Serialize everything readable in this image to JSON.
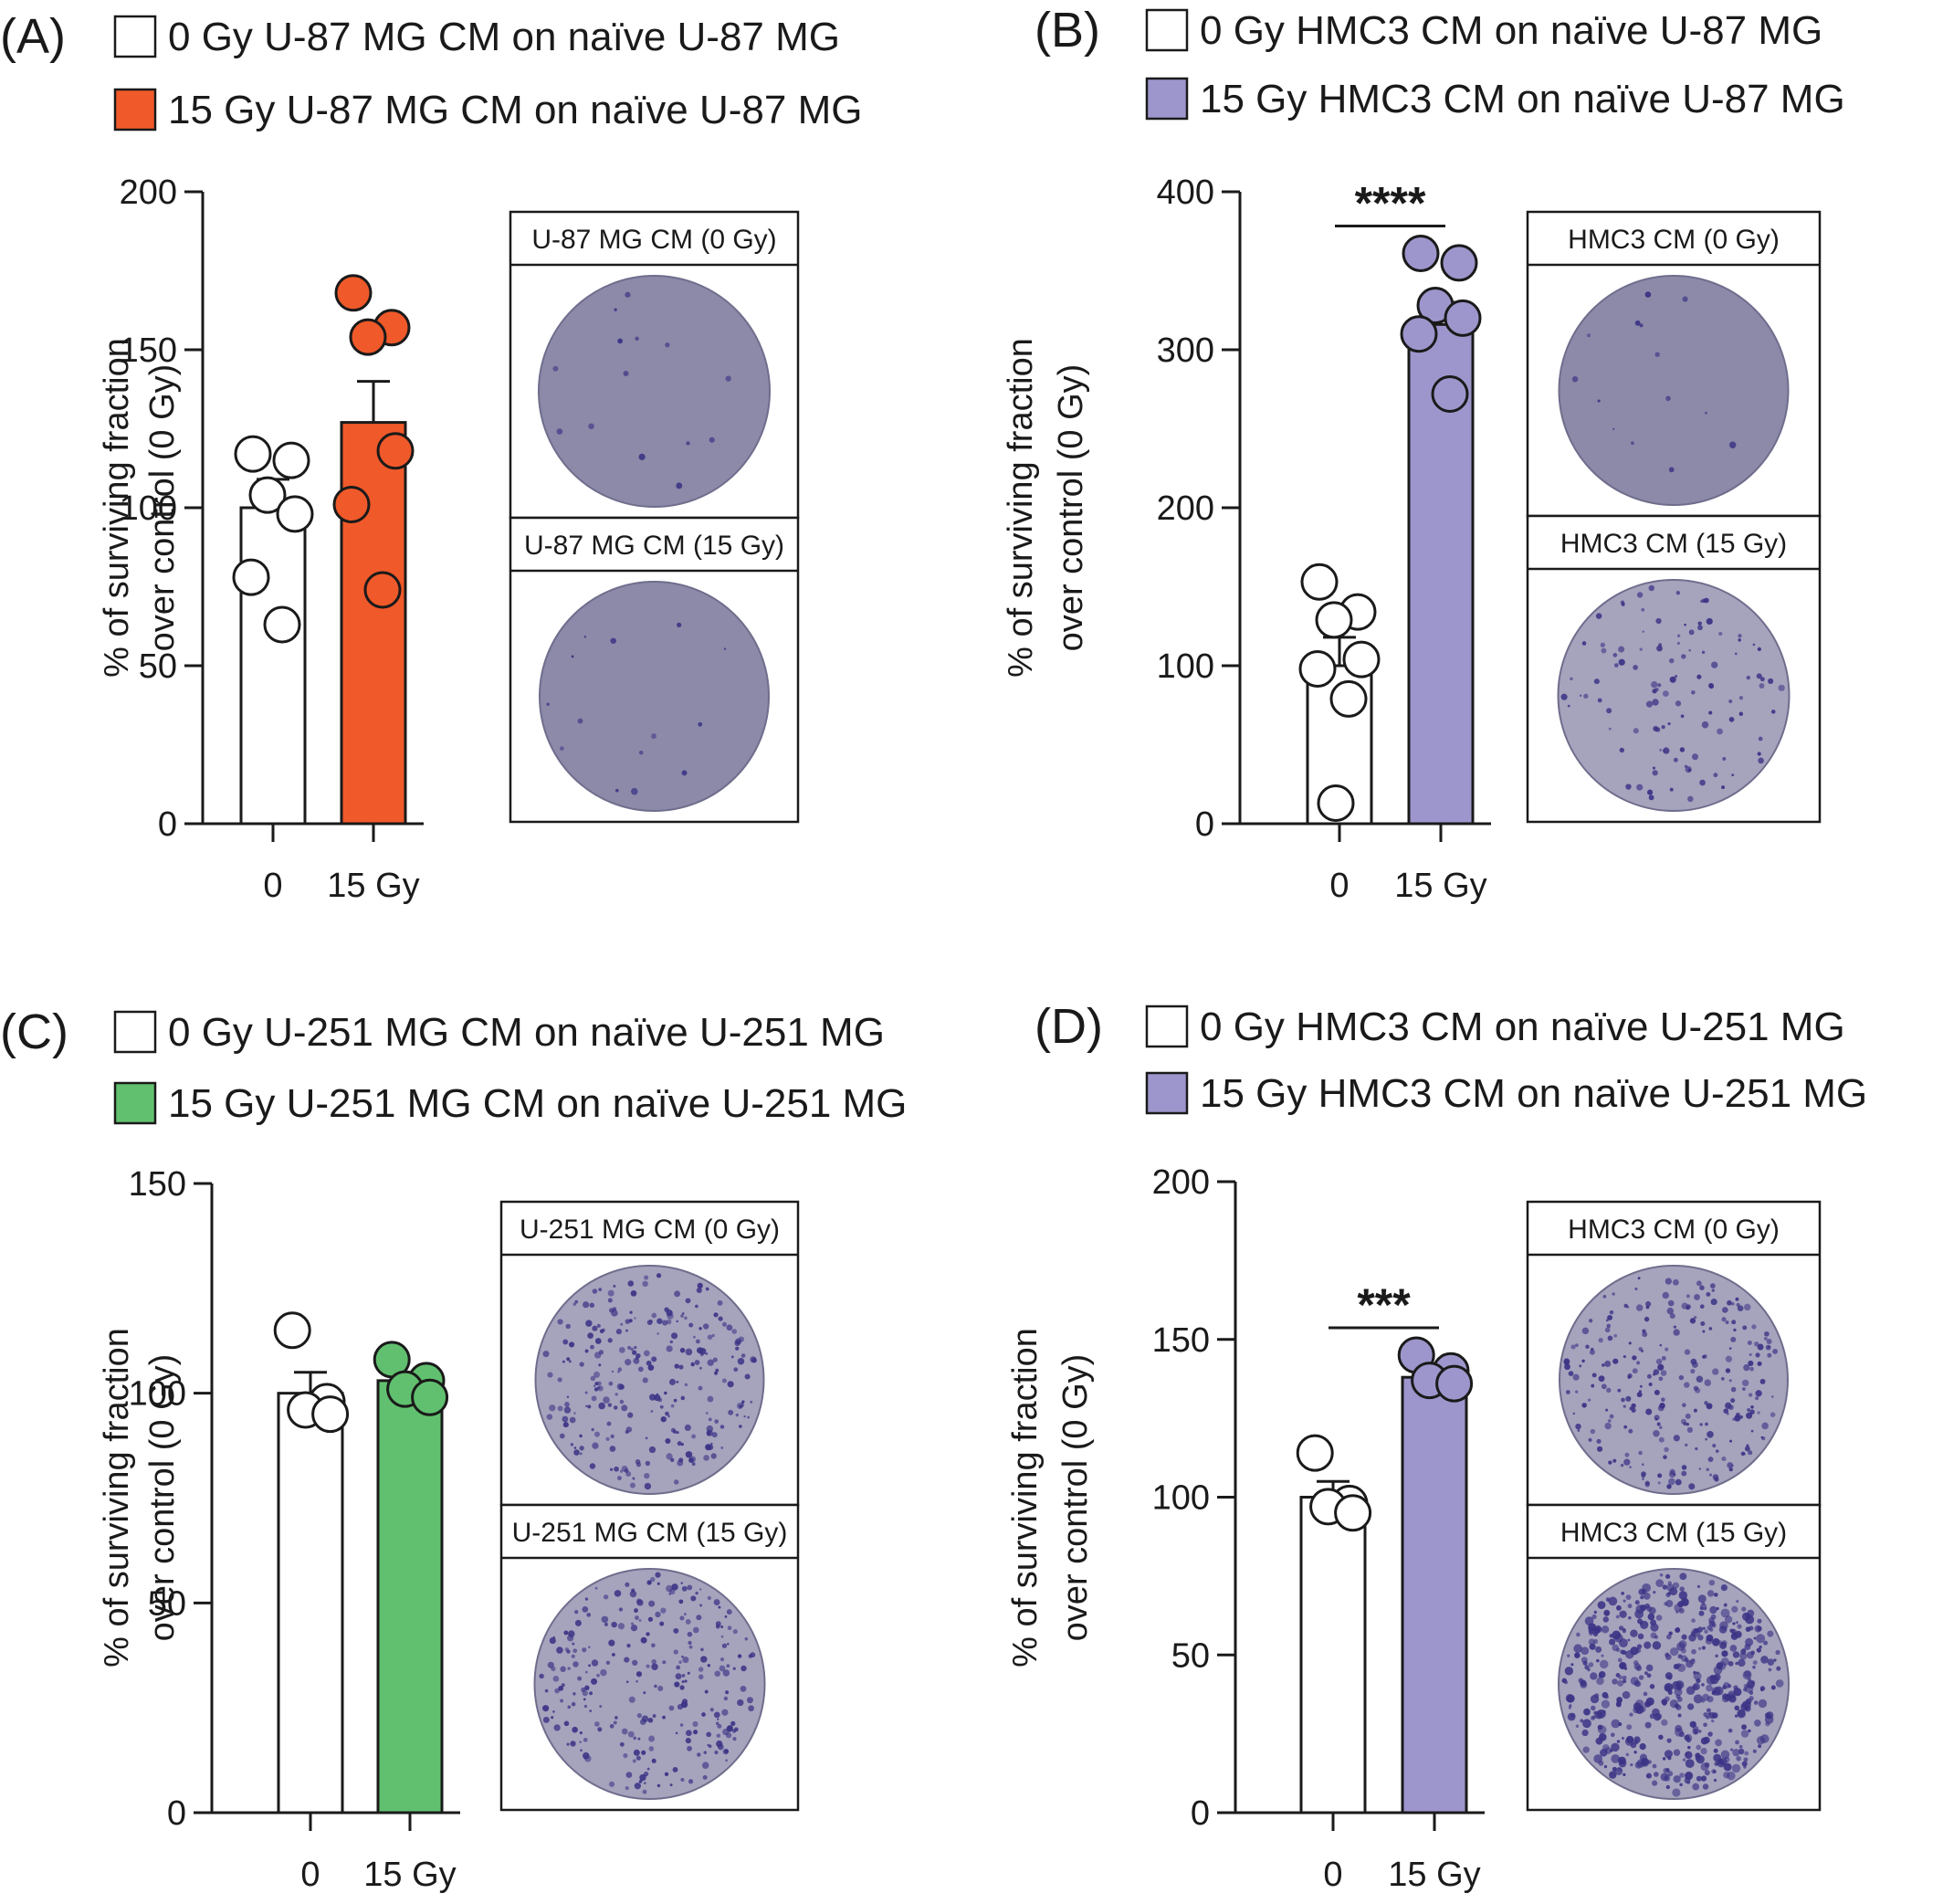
{
  "colors": {
    "control": "#ffffff",
    "u87_irradiated": "#f0592a",
    "hmc3_irradiated": "#9d96cc",
    "u251_irradiated": "#61c06f",
    "dish_sparse": "#8c8aa8",
    "dish_dense": "#a6a3bd",
    "colony": "#3b3385"
  },
  "chart_data": [
    {
      "type": "bar",
      "panel": "(A)",
      "legend": [
        "0 Gy U-87 MG CM on naïve U-87 MG",
        "15 Gy U-87 MG CM on naïve U-87 MG"
      ],
      "categories": [
        "0",
        "15 Gy"
      ],
      "ylabel": [
        "% of surviving fraction",
        "over control (0 Gy)"
      ],
      "ylim": [
        0,
        200
      ],
      "yticks": [
        0,
        50,
        100,
        150,
        200
      ],
      "series": [
        {
          "mean": 100,
          "sem": 9,
          "points": [
            117,
            115,
            104,
            98,
            78,
            63
          ],
          "color": "#ffffff"
        },
        {
          "mean": 127,
          "sem": 13,
          "points": [
            168,
            157,
            154,
            118,
            101,
            74
          ],
          "color": "#f0592a"
        }
      ],
      "significance": "",
      "images": [
        {
          "label": "U-87 MG CM (0 Gy)",
          "density": "sparse"
        },
        {
          "label": "U-87 MG CM (15 Gy)",
          "density": "sparse"
        }
      ]
    },
    {
      "type": "bar",
      "panel": "(B)",
      "legend": [
        "0 Gy HMC3 CM on naïve U-87 MG",
        "15 Gy HMC3 CM on naïve U-87 MG"
      ],
      "categories": [
        "0",
        "15 Gy"
      ],
      "ylabel": [
        "% of surviving fraction",
        "over control (0 Gy)"
      ],
      "ylim": [
        0,
        400
      ],
      "yticks": [
        0,
        100,
        200,
        300,
        400
      ],
      "series": [
        {
          "mean": 100,
          "sem": 18,
          "points": [
            153,
            134,
            129,
            104,
            98,
            79,
            13
          ],
          "color": "#ffffff"
        },
        {
          "mean": 316,
          "sem": 14,
          "points": [
            361,
            355,
            328,
            320,
            310,
            272
          ],
          "color": "#9d96cc"
        }
      ],
      "significance": "****",
      "images": [
        {
          "label": "HMC3 CM (0 Gy)",
          "density": "sparse"
        },
        {
          "label": "HMC3 CM (15 Gy)",
          "density": "medium"
        }
      ]
    },
    {
      "type": "bar",
      "panel": "(C)",
      "legend": [
        "0 Gy U-251 MG CM on naïve U-251 MG",
        "15 Gy U-251 MG CM on naïve U-251 MG"
      ],
      "categories": [
        "0",
        "15 Gy"
      ],
      "ylabel": [
        "% of surviving fraction",
        "over control (0 Gy)"
      ],
      "ylim": [
        0,
        150
      ],
      "yticks": [
        0,
        50,
        100,
        150
      ],
      "series": [
        {
          "mean": 100,
          "sem": 5,
          "points": [
            115,
            98,
            96,
            95
          ],
          "color": "#ffffff"
        },
        {
          "mean": 103,
          "sem": 2,
          "points": [
            108,
            103,
            101,
            99
          ],
          "color": "#61c06f"
        }
      ],
      "significance": "",
      "images": [
        {
          "label": "U-251 MG CM (0 Gy)",
          "density": "dense"
        },
        {
          "label": "U-251 MG CM (15 Gy)",
          "density": "dense"
        }
      ]
    },
    {
      "type": "bar",
      "panel": "(D)",
      "legend": [
        "0 Gy HMC3 CM on naïve U-251 MG",
        "15 Gy HMC3 CM on naïve U-251 MG"
      ],
      "categories": [
        "0",
        "15 Gy"
      ],
      "ylabel": [
        "% of surviving fraction",
        "over control (0 Gy)"
      ],
      "ylim": [
        0,
        200
      ],
      "yticks": [
        0,
        50,
        100,
        150,
        200
      ],
      "series": [
        {
          "mean": 100,
          "sem": 5,
          "points": [
            114,
            98,
            97,
            95
          ],
          "color": "#ffffff"
        },
        {
          "mean": 138,
          "sem": 3,
          "points": [
            145,
            140,
            137,
            136
          ],
          "color": "#9d96cc"
        }
      ],
      "significance": "***",
      "images": [
        {
          "label": "HMC3 CM (0 Gy)",
          "density": "dense"
        },
        {
          "label": "HMC3 CM (15 Gy)",
          "density": "very-dense"
        }
      ]
    }
  ]
}
